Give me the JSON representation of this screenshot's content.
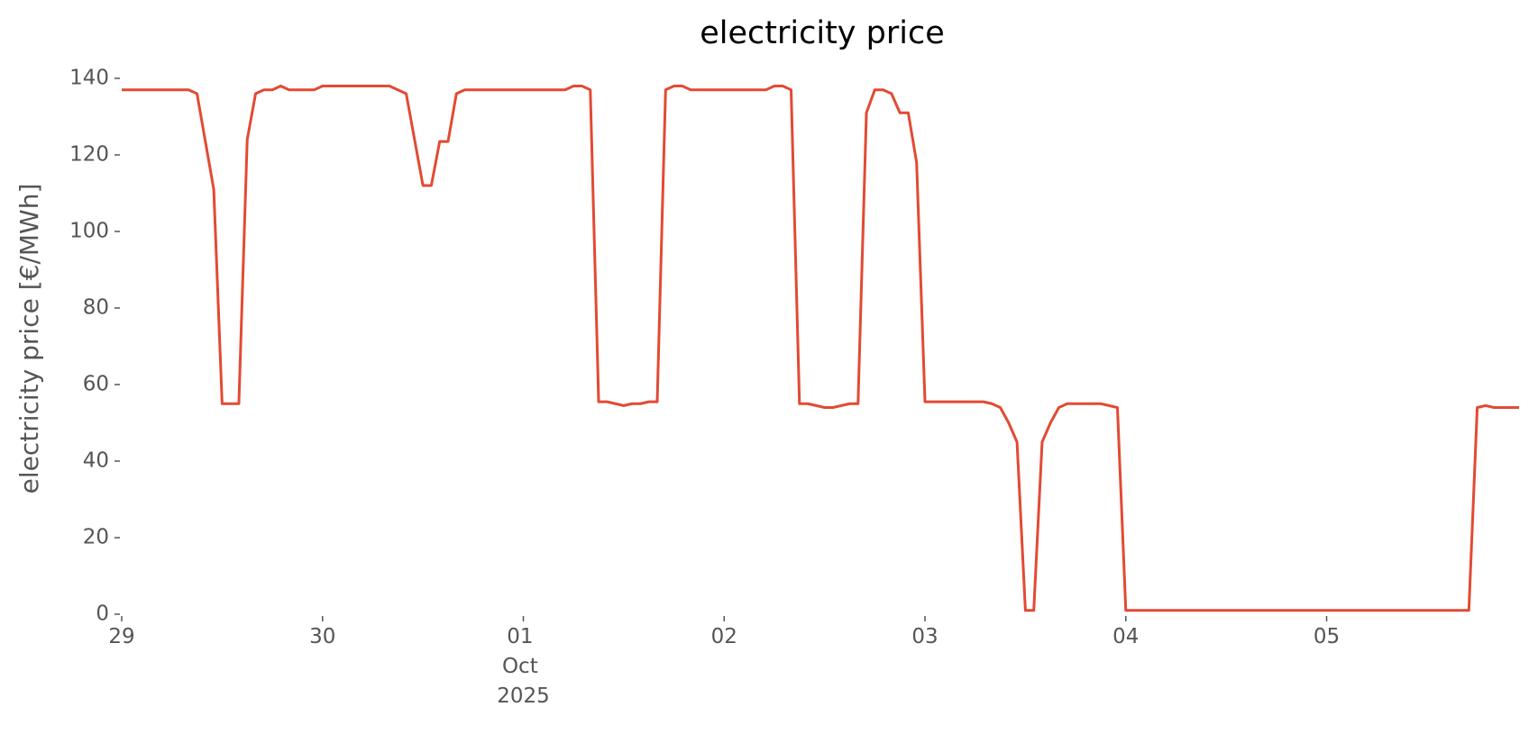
{
  "chart_data": {
    "type": "line",
    "title": "electricity price",
    "ylabel": "electricity price [€/MWh]",
    "color": "#e24a33",
    "ylim": [
      0,
      140
    ],
    "yticks": [
      0,
      20,
      40,
      60,
      80,
      100,
      120,
      140
    ],
    "xlim": [
      "2025-09-29 00:00",
      "2025-10-05 23:00"
    ],
    "xticks": [
      {
        "value": "2025-09-29 00:00",
        "label": "29"
      },
      {
        "value": "2025-09-30 00:00",
        "label": "30"
      },
      {
        "value": "2025-10-01 00:00",
        "label": "01\nOct\n2025"
      },
      {
        "value": "2025-10-02 00:00",
        "label": "02"
      },
      {
        "value": "2025-10-03 00:00",
        "label": "03"
      },
      {
        "value": "2025-10-04 00:00",
        "label": "04"
      },
      {
        "value": "2025-10-05 00:00",
        "label": "05"
      }
    ],
    "x": [
      "2025-09-29 00:00",
      "2025-09-29 01:00",
      "2025-09-29 02:00",
      "2025-09-29 03:00",
      "2025-09-29 04:00",
      "2025-09-29 05:00",
      "2025-09-29 06:00",
      "2025-09-29 07:00",
      "2025-09-29 08:00",
      "2025-09-29 09:00",
      "2025-09-29 10:00",
      "2025-09-29 11:00",
      "2025-09-29 12:00",
      "2025-09-29 13:00",
      "2025-09-29 14:00",
      "2025-09-29 15:00",
      "2025-09-29 16:00",
      "2025-09-29 17:00",
      "2025-09-29 18:00",
      "2025-09-29 19:00",
      "2025-09-29 20:00",
      "2025-09-29 21:00",
      "2025-09-29 22:00",
      "2025-09-29 23:00",
      "2025-09-30 00:00",
      "2025-09-30 01:00",
      "2025-09-30 02:00",
      "2025-09-30 03:00",
      "2025-09-30 04:00",
      "2025-09-30 05:00",
      "2025-09-30 06:00",
      "2025-09-30 07:00",
      "2025-09-30 08:00",
      "2025-09-30 09:00",
      "2025-09-30 10:00",
      "2025-09-30 11:00",
      "2025-09-30 12:00",
      "2025-09-30 13:00",
      "2025-09-30 14:00",
      "2025-09-30 15:00",
      "2025-09-30 16:00",
      "2025-09-30 17:00",
      "2025-09-30 18:00",
      "2025-09-30 19:00",
      "2025-09-30 20:00",
      "2025-09-30 21:00",
      "2025-09-30 22:00",
      "2025-09-30 23:00",
      "2025-10-01 00:00",
      "2025-10-01 01:00",
      "2025-10-01 02:00",
      "2025-10-01 03:00",
      "2025-10-01 04:00",
      "2025-10-01 05:00",
      "2025-10-01 06:00",
      "2025-10-01 07:00",
      "2025-10-01 08:00",
      "2025-10-01 09:00",
      "2025-10-01 10:00",
      "2025-10-01 11:00",
      "2025-10-01 12:00",
      "2025-10-01 13:00",
      "2025-10-01 14:00",
      "2025-10-01 15:00",
      "2025-10-01 16:00",
      "2025-10-01 17:00",
      "2025-10-01 18:00",
      "2025-10-01 19:00",
      "2025-10-01 20:00",
      "2025-10-01 21:00",
      "2025-10-01 22:00",
      "2025-10-01 23:00",
      "2025-10-02 00:00",
      "2025-10-02 01:00",
      "2025-10-02 02:00",
      "2025-10-02 03:00",
      "2025-10-02 04:00",
      "2025-10-02 05:00",
      "2025-10-02 06:00",
      "2025-10-02 07:00",
      "2025-10-02 08:00",
      "2025-10-02 09:00",
      "2025-10-02 10:00",
      "2025-10-02 11:00",
      "2025-10-02 12:00",
      "2025-10-02 13:00",
      "2025-10-02 14:00",
      "2025-10-02 15:00",
      "2025-10-02 16:00",
      "2025-10-02 17:00",
      "2025-10-02 18:00",
      "2025-10-02 19:00",
      "2025-10-02 20:00",
      "2025-10-02 21:00",
      "2025-10-02 22:00",
      "2025-10-02 23:00",
      "2025-10-03 00:00",
      "2025-10-03 01:00",
      "2025-10-03 02:00",
      "2025-10-03 03:00",
      "2025-10-03 04:00",
      "2025-10-03 05:00",
      "2025-10-03 06:00",
      "2025-10-03 07:00",
      "2025-10-03 08:00",
      "2025-10-03 09:00",
      "2025-10-03 10:00",
      "2025-10-03 11:00",
      "2025-10-03 12:00",
      "2025-10-03 13:00",
      "2025-10-03 14:00",
      "2025-10-03 15:00",
      "2025-10-03 16:00",
      "2025-10-03 17:00",
      "2025-10-03 18:00",
      "2025-10-03 19:00",
      "2025-10-03 20:00",
      "2025-10-03 21:00",
      "2025-10-03 22:00",
      "2025-10-03 23:00",
      "2025-10-04 00:00",
      "2025-10-04 01:00",
      "2025-10-04 02:00",
      "2025-10-04 03:00",
      "2025-10-04 04:00",
      "2025-10-04 05:00",
      "2025-10-04 06:00",
      "2025-10-04 07:00",
      "2025-10-04 08:00",
      "2025-10-04 09:00",
      "2025-10-04 10:00",
      "2025-10-04 11:00",
      "2025-10-04 12:00",
      "2025-10-04 13:00",
      "2025-10-04 14:00",
      "2025-10-04 15:00",
      "2025-10-04 16:00",
      "2025-10-04 17:00",
      "2025-10-04 18:00",
      "2025-10-04 19:00",
      "2025-10-04 20:00",
      "2025-10-04 21:00",
      "2025-10-04 22:00",
      "2025-10-04 23:00",
      "2025-10-05 00:00",
      "2025-10-05 01:00",
      "2025-10-05 02:00",
      "2025-10-05 03:00",
      "2025-10-05 04:00",
      "2025-10-05 05:00",
      "2025-10-05 06:00",
      "2025-10-05 07:00",
      "2025-10-05 08:00",
      "2025-10-05 09:00",
      "2025-10-05 10:00",
      "2025-10-05 11:00",
      "2025-10-05 12:00",
      "2025-10-05 13:00",
      "2025-10-05 14:00",
      "2025-10-05 15:00",
      "2025-10-05 16:00",
      "2025-10-05 17:00",
      "2025-10-05 18:00",
      "2025-10-05 19:00",
      "2025-10-05 20:00",
      "2025-10-05 21:00",
      "2025-10-05 22:00",
      "2025-10-05 23:00"
    ],
    "values": [
      137,
      137,
      137,
      137,
      137,
      137,
      137,
      137,
      137,
      136,
      123.5,
      111,
      55,
      55,
      55,
      124,
      136,
      137,
      137,
      138,
      137,
      137,
      137,
      137,
      138,
      138,
      138,
      138,
      138,
      138,
      138,
      138,
      138,
      137,
      136,
      124,
      112,
      112,
      123.5,
      123.5,
      136,
      137,
      137,
      137,
      137,
      137,
      137,
      137,
      137,
      137,
      137,
      137,
      137,
      137,
      138,
      138,
      137,
      55.5,
      55.5,
      55,
      54.5,
      55,
      55,
      55.5,
      55.5,
      137,
      138,
      138,
      137,
      137,
      137,
      137,
      137,
      137,
      137,
      137,
      137,
      137,
      138,
      138,
      137,
      55,
      55,
      54.5,
      54,
      54,
      54.5,
      55,
      55,
      131,
      137,
      137,
      136,
      131,
      131,
      118,
      55.5,
      55.5,
      55.5,
      55.5,
      55.5,
      55.5,
      55.5,
      55.5,
      55,
      54,
      50,
      45,
      1,
      1,
      45,
      50,
      54,
      55,
      55,
      55,
      55,
      55,
      54.5,
      54,
      1,
      1,
      1,
      1,
      1,
      1,
      1,
      1,
      1,
      1,
      1,
      1,
      1,
      1,
      1,
      1,
      1,
      1,
      1,
      1,
      1,
      1,
      1,
      1,
      1,
      1,
      1,
      1,
      1,
      1,
      1,
      1,
      1,
      1,
      1,
      1,
      1,
      1,
      1,
      1,
      1,
      1,
      54,
      54.5,
      54,
      54,
      54,
      54
    ]
  }
}
